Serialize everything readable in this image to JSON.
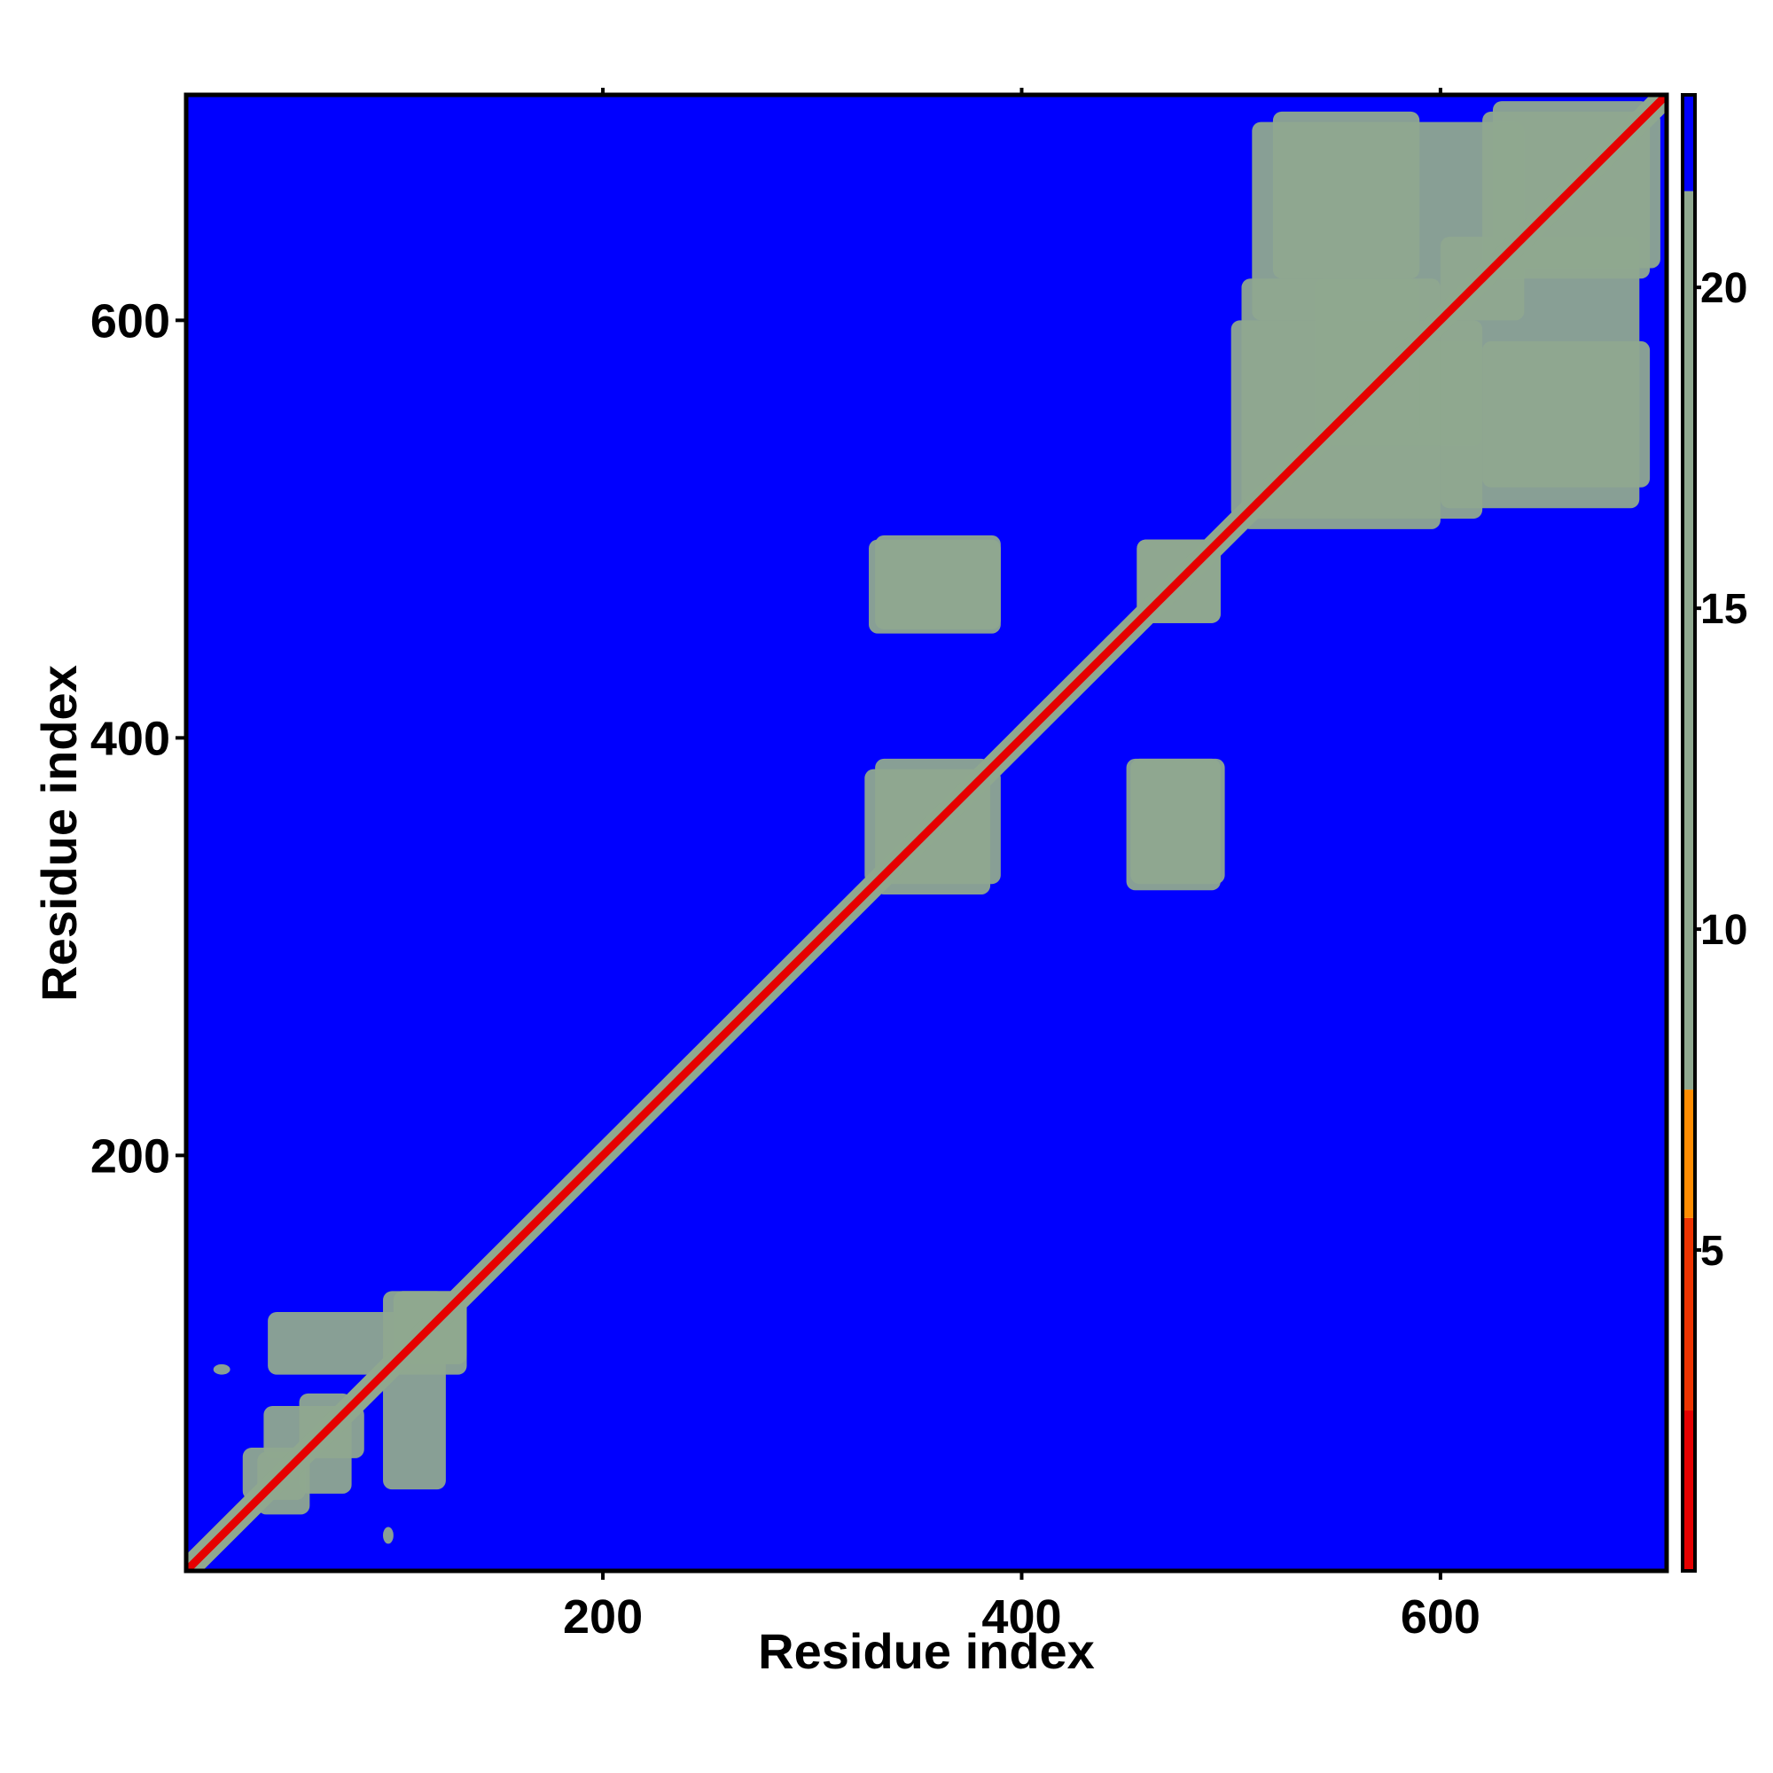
{
  "chart_data": {
    "type": "heatmap",
    "title": "",
    "xlabel": "Residue index",
    "ylabel": "Residue index",
    "xlim": [
      1,
      708
    ],
    "ylim": [
      1,
      708
    ],
    "x_ticks": [
      200,
      400,
      600
    ],
    "y_ticks": [
      200,
      400,
      600
    ],
    "x_tick_labels": [
      "200",
      "400",
      "600"
    ],
    "y_tick_labels": [
      "200",
      "400",
      "600"
    ],
    "colorbar": {
      "range": [
        0,
        23
      ],
      "ticks": [
        5,
        10,
        15,
        20
      ],
      "tick_labels": [
        "5",
        "10",
        "15",
        "20"
      ],
      "bands": [
        {
          "from": 0,
          "to": 2.5,
          "color": "#e60000"
        },
        {
          "from": 2.5,
          "to": 5.5,
          "color": "#ee3300"
        },
        {
          "from": 5.5,
          "to": 7.5,
          "color": "#ff8c00"
        },
        {
          "from": 7.5,
          "to": 21.5,
          "color": "#8fa88f"
        },
        {
          "from": 21.5,
          "to": 23,
          "color": "#0000ff"
        }
      ]
    },
    "background_value": 23,
    "diagonal": {
      "start": 1,
      "end": 708,
      "core_value": 2,
      "halo_value": 12
    },
    "contact_regions": [
      {
        "x": [
          95,
          100
        ],
        "y": [
          14,
          22
        ],
        "value": 12
      },
      {
        "x": [
          28,
          58
        ],
        "y": [
          35,
          60
        ],
        "value": 12
      },
      {
        "x": [
          38,
          86
        ],
        "y": [
          55,
          80
        ],
        "value": 12
      },
      {
        "x": [
          40,
          135
        ],
        "y": [
          95,
          125
        ],
        "value": 12
      },
      {
        "x": [
          100,
          135
        ],
        "y": [
          100,
          135
        ],
        "value": 12
      },
      {
        "x": [
          325,
          390
        ],
        "y": [
          330,
          385
        ],
        "value": 12
      },
      {
        "x": [
          452,
          497
        ],
        "y": [
          330,
          390
        ],
        "value": 12
      },
      {
        "x": [
          327,
          390
        ],
        "y": [
          450,
          495
        ],
        "value": 12
      },
      {
        "x": [
          455,
          495
        ],
        "y": [
          455,
          495
        ],
        "value": 12
      },
      {
        "x": [
          500,
          620
        ],
        "y": [
          505,
          600
        ],
        "value": 12
      },
      {
        "x": [
          545,
          620
        ],
        "y": [
          540,
          590
        ],
        "value": 12
      },
      {
        "x": [
          620,
          700
        ],
        "y": [
          520,
          590
        ],
        "value": 12
      },
      {
        "x": [
          510,
          640
        ],
        "y": [
          600,
          695
        ],
        "value": 12
      },
      {
        "x": [
          625,
          700
        ],
        "y": [
          620,
          705
        ],
        "value": 12
      }
    ]
  }
}
